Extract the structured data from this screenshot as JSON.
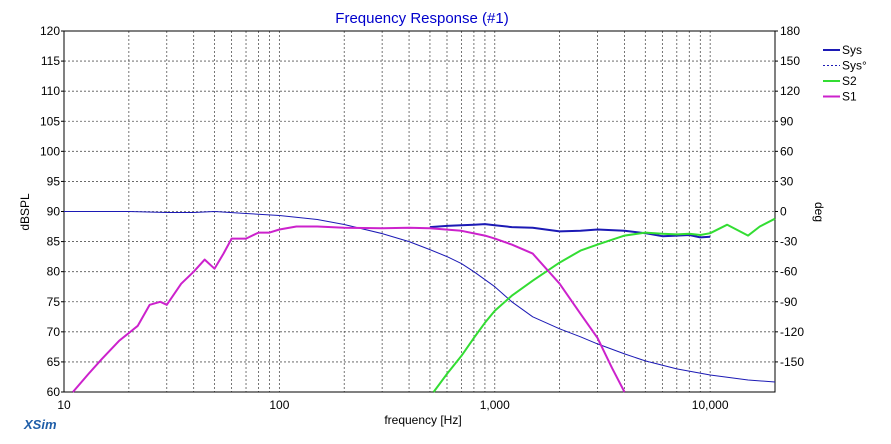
{
  "chart_data": {
    "type": "line",
    "title": "Frequency Response (#1)",
    "xlabel": "frequency [Hz]",
    "ylabel_left": "dBSPL",
    "ylabel_right": "deg",
    "x_scale": "log",
    "xlim": [
      10,
      20000
    ],
    "ylim_left": [
      60,
      120
    ],
    "ylim_right": [
      -180,
      180
    ],
    "x_tick_labels": [
      {
        "value": 10,
        "label": "10"
      },
      {
        "value": 100,
        "label": "100"
      },
      {
        "value": 1000,
        "label": "1,000"
      },
      {
        "value": 10000,
        "label": "10,000"
      }
    ],
    "y_ticks_left": [
      60,
      65,
      70,
      75,
      80,
      85,
      90,
      95,
      100,
      105,
      110,
      115,
      120
    ],
    "y_ticks_right": [
      -150,
      -120,
      -90,
      -60,
      -30,
      0,
      30,
      60,
      90,
      120,
      150,
      180
    ],
    "grid": true,
    "legend_position": "top-right",
    "series": [
      {
        "name": "Sys",
        "color": "#1c1ab5",
        "style": "solid",
        "axis": "left",
        "x": [
          500,
          600,
          700,
          800,
          900,
          1000,
          1200,
          1500,
          2000,
          2500,
          3000,
          4000,
          5000,
          6000,
          7000,
          8000,
          9000,
          10000
        ],
        "y": [
          87.4,
          87.6,
          87.7,
          87.8,
          87.9,
          87.7,
          87.4,
          87.3,
          86.7,
          86.8,
          87.0,
          86.8,
          86.4,
          85.9,
          86.0,
          86.1,
          85.7,
          85.8
        ]
      },
      {
        "name": "Sys°",
        "color": "#1c1ab5",
        "style": "dotted",
        "axis": "right",
        "x": [
          10,
          20,
          30,
          40,
          50,
          70,
          100,
          150,
          200,
          300,
          400,
          500,
          600,
          700,
          800,
          1000,
          1200,
          1500,
          2000,
          2500,
          3000,
          4000,
          5000,
          7000,
          10000,
          15000,
          20000
        ],
        "y": [
          0,
          0,
          -1,
          -1,
          0,
          -2,
          -4,
          -8,
          -13,
          -22,
          -30,
          -38,
          -45,
          -52,
          -60,
          -75,
          -90,
          -105,
          -117,
          -125,
          -132,
          -142,
          -149,
          -157,
          -163,
          -168,
          -170
        ]
      },
      {
        "name": "S2",
        "color": "#33dd33",
        "style": "solid",
        "axis": "left",
        "x": [
          520,
          600,
          700,
          800,
          900,
          1000,
          1200,
          1500,
          2000,
          2500,
          3000,
          4000,
          5000,
          6000,
          7000,
          8000,
          9000,
          10000,
          12000,
          15000,
          17000,
          20000
        ],
        "y": [
          60,
          63,
          66,
          69,
          71.5,
          73.5,
          76,
          78.5,
          81.5,
          83.5,
          84.5,
          86,
          86.5,
          86.3,
          86.2,
          86.3,
          86.1,
          86.4,
          87.8,
          86.0,
          87.5,
          88.8
        ]
      },
      {
        "name": "S1",
        "color": "#cc22cc",
        "style": "solid",
        "axis": "left",
        "x": [
          11,
          13,
          15,
          18,
          22,
          25,
          28,
          30,
          35,
          40,
          45,
          50,
          55,
          60,
          70,
          80,
          90,
          100,
          120,
          150,
          200,
          300,
          400,
          500,
          700,
          900,
          1000,
          1200,
          1500,
          2000,
          2500,
          3000,
          3500,
          4000
        ],
        "y": [
          60,
          63,
          65.5,
          68.5,
          71,
          74.5,
          75,
          74.5,
          78,
          80,
          82,
          80.5,
          83,
          85.5,
          85.5,
          86.5,
          86.5,
          87,
          87.5,
          87.5,
          87.3,
          87.2,
          87.3,
          87.2,
          86.8,
          86,
          85.5,
          84.5,
          83,
          78,
          73,
          69,
          64,
          60
        ]
      }
    ]
  },
  "brand": "XSim"
}
